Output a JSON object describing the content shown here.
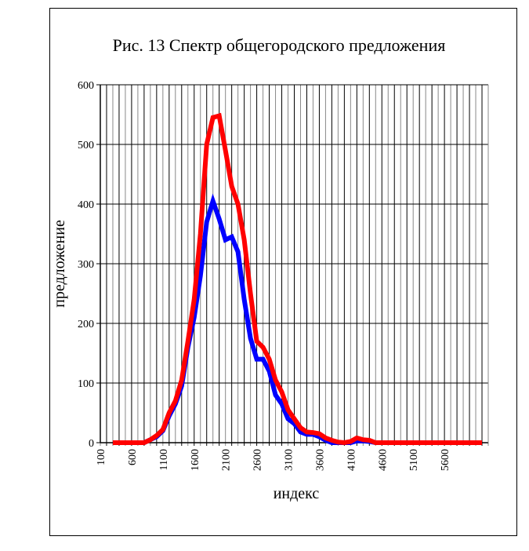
{
  "chart_data": {
    "type": "line",
    "title": "Рис. 13 Спектр общегородского предложения",
    "xlabel": "индекс",
    "ylabel": "предложение",
    "xlim": [
      100,
      6300
    ],
    "ylim": [
      0,
      600
    ],
    "grid": true,
    "legend": "none",
    "x_tick_labels": [
      "100",
      "600",
      "1100",
      "1600",
      "2100",
      "2600",
      "3100",
      "3600",
      "4100",
      "4600",
      "5100",
      "5600"
    ],
    "y_tick_labels": [
      "0",
      "100",
      "200",
      "300",
      "400",
      "500",
      "600"
    ],
    "x": [
      300,
      400,
      500,
      600,
      700,
      800,
      900,
      1000,
      1100,
      1200,
      1300,
      1400,
      1500,
      1600,
      1700,
      1800,
      1900,
      2000,
      2100,
      2200,
      2300,
      2400,
      2500,
      2600,
      2700,
      2800,
      2900,
      3000,
      3100,
      3200,
      3300,
      3400,
      3500,
      3600,
      3700,
      3800,
      3900,
      4000,
      4100,
      4200,
      4300,
      4400,
      4500,
      4600,
      4700,
      4800,
      4900,
      5000,
      5100,
      5200,
      5300,
      5400,
      5500,
      5600,
      5700,
      5800,
      5900,
      6000,
      6100,
      6200
    ],
    "series": [
      {
        "name": "series-blue",
        "color": "#0000ff",
        "values": [
          0,
          0,
          0,
          0,
          0,
          0,
          5,
          10,
          20,
          45,
          65,
          95,
          160,
          210,
          280,
          370,
          405,
          375,
          340,
          345,
          320,
          240,
          175,
          140,
          140,
          120,
          80,
          65,
          40,
          32,
          18,
          14,
          14,
          10,
          4,
          0,
          0,
          0,
          0,
          3,
          3,
          2,
          0,
          0,
          0,
          0,
          0,
          0,
          0,
          0,
          0,
          0,
          0,
          0,
          0,
          0,
          0,
          0,
          0,
          0
        ]
      },
      {
        "name": "series-red",
        "color": "#ff0000",
        "values": [
          0,
          0,
          0,
          0,
          0,
          0,
          5,
          12,
          22,
          50,
          70,
          105,
          170,
          240,
          350,
          500,
          545,
          548,
          490,
          430,
          400,
          340,
          250,
          170,
          160,
          140,
          105,
          85,
          55,
          40,
          25,
          18,
          17,
          15,
          8,
          4,
          1,
          0,
          2,
          8,
          5,
          4,
          0,
          0,
          0,
          0,
          0,
          0,
          0,
          0,
          0,
          0,
          0,
          0,
          0,
          0,
          0,
          0,
          0,
          0
        ]
      }
    ]
  }
}
